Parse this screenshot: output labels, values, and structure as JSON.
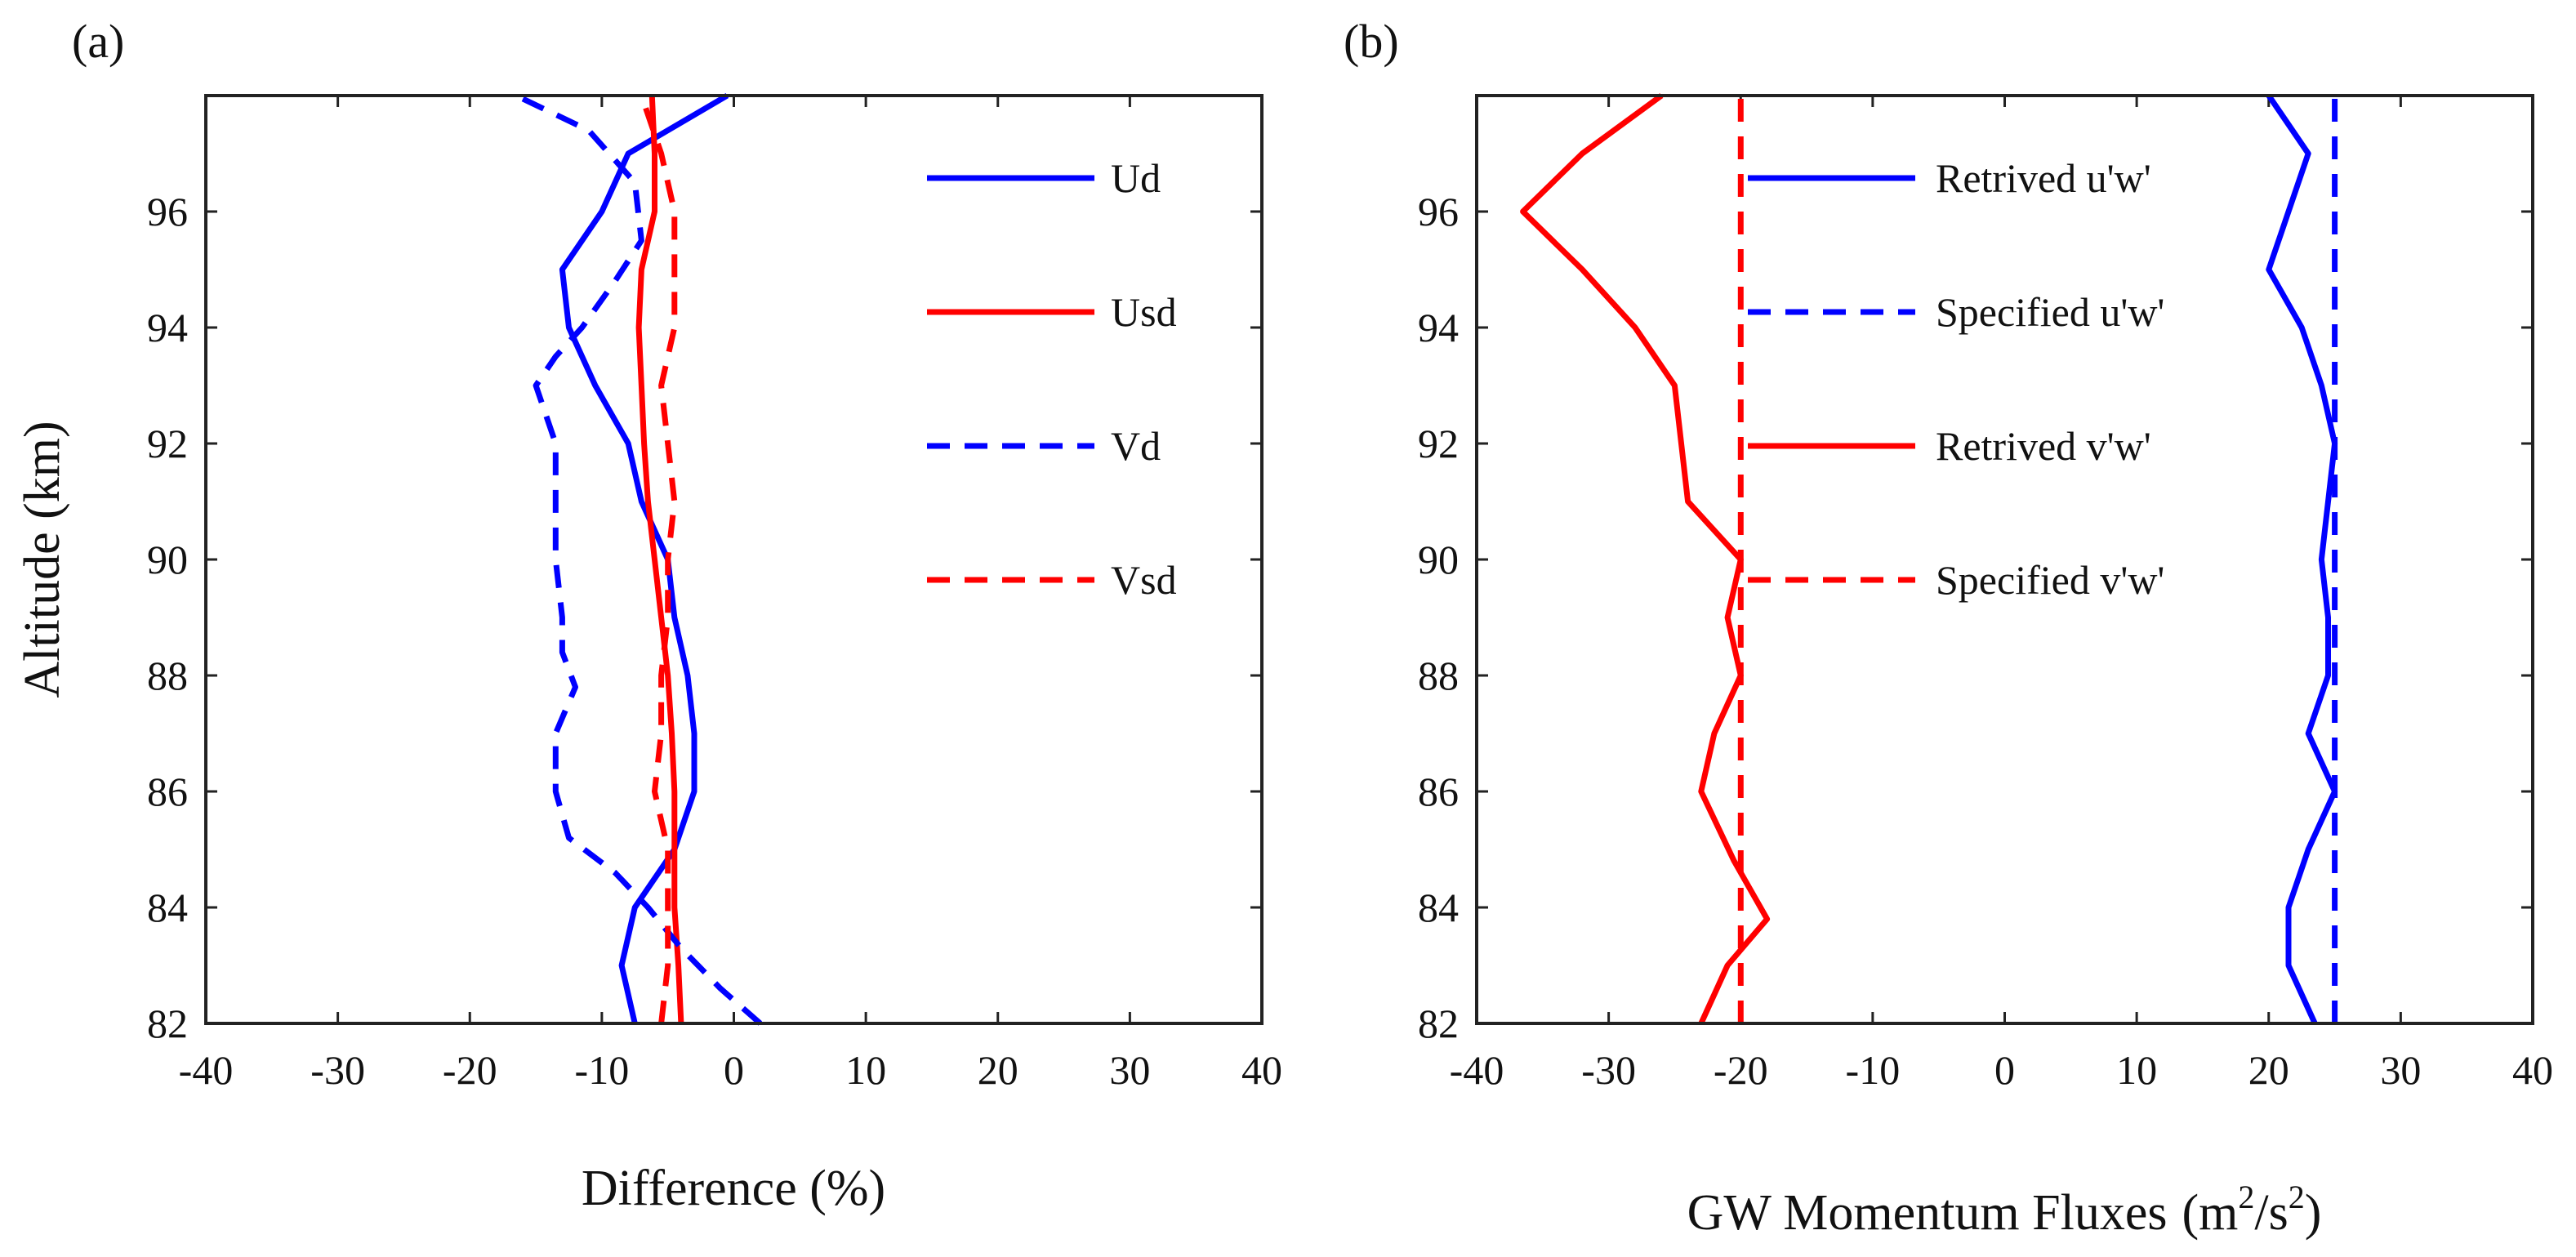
{
  "chart_data": [
    {
      "type": "line",
      "panel_label": "(a)",
      "title": "",
      "xlabel": "Difference (%)",
      "ylabel": "Altitude (km)",
      "xlim": [
        -40,
        40
      ],
      "ylim": [
        82,
        98
      ],
      "xticks": [
        -40,
        -30,
        -20,
        -10,
        0,
        10,
        20,
        30,
        40
      ],
      "yticks": [
        82,
        84,
        86,
        88,
        90,
        92,
        94,
        96
      ],
      "legend_position": "top-right",
      "series": [
        {
          "name": "Ud",
          "color": "#0000ff",
          "dash": "solid",
          "points": [
            [
              -7.5,
              82
            ],
            [
              -8.5,
              83
            ],
            [
              -7.5,
              84
            ],
            [
              -4.5,
              85
            ],
            [
              -3,
              86
            ],
            [
              -3,
              87
            ],
            [
              -3.5,
              88
            ],
            [
              -4.5,
              89
            ],
            [
              -5,
              90
            ],
            [
              -7,
              91
            ],
            [
              -8,
              92
            ],
            [
              -10.5,
              93
            ],
            [
              -12.5,
              94
            ],
            [
              -13,
              95
            ],
            [
              -10,
              96
            ],
            [
              -8,
              97
            ],
            [
              -0.5,
              98
            ]
          ]
        },
        {
          "name": "Usd",
          "color": "#ff0000",
          "dash": "solid",
          "points": [
            [
              -4,
              82
            ],
            [
              -4.2,
              83
            ],
            [
              -4.5,
              84
            ],
            [
              -4.5,
              85
            ],
            [
              -4.5,
              86
            ],
            [
              -4.7,
              87
            ],
            [
              -5,
              88
            ],
            [
              -5.5,
              89
            ],
            [
              -6,
              90
            ],
            [
              -6.5,
              91
            ],
            [
              -6.8,
              92
            ],
            [
              -7,
              93
            ],
            [
              -7.2,
              94
            ],
            [
              -7,
              95
            ],
            [
              -6,
              96
            ],
            [
              -6,
              97
            ],
            [
              -6.2,
              98
            ]
          ]
        },
        {
          "name": "Vd",
          "color": "#0000ff",
          "dash": "dashed",
          "points": [
            [
              2,
              82
            ],
            [
              -1,
              82.6
            ],
            [
              -4,
              83.3
            ],
            [
              -6.5,
              84
            ],
            [
              -9,
              84.6
            ],
            [
              -12.5,
              85.2
            ],
            [
              -13.5,
              86
            ],
            [
              -13.5,
              87
            ],
            [
              -12,
              87.8
            ],
            [
              -13,
              88.4
            ],
            [
              -13,
              89
            ],
            [
              -13.5,
              90
            ],
            [
              -13.5,
              91
            ],
            [
              -13.5,
              92
            ],
            [
              -15,
              93
            ],
            [
              -13.5,
              93.5
            ],
            [
              -11.5,
              94
            ],
            [
              -9,
              94.8
            ],
            [
              -7,
              95.5
            ],
            [
              -7.5,
              96.5
            ],
            [
              -11,
              97.4
            ],
            [
              -16.5,
              98
            ]
          ]
        },
        {
          "name": "Vsd",
          "color": "#ff0000",
          "dash": "dashed",
          "points": [
            [
              -5.5,
              82
            ],
            [
              -5,
              83
            ],
            [
              -5,
              84
            ],
            [
              -5,
              85
            ],
            [
              -6,
              86
            ],
            [
              -5.5,
              87
            ],
            [
              -5.5,
              88
            ],
            [
              -5,
              89
            ],
            [
              -5,
              90
            ],
            [
              -4.5,
              91
            ],
            [
              -5,
              92
            ],
            [
              -5.5,
              93
            ],
            [
              -4.5,
              94
            ],
            [
              -4.5,
              95
            ],
            [
              -4.5,
              96
            ],
            [
              -5.5,
              97
            ],
            [
              -7,
              98
            ]
          ]
        }
      ]
    },
    {
      "type": "line",
      "panel_label": "(b)",
      "title": "",
      "xlabel": "GW Momentum Fluxes",
      "xlabel_unit_open": "(m",
      "xlabel_unit_sup1": "2",
      "xlabel_unit_mid": "/s",
      "xlabel_unit_sup2": "2",
      "xlabel_unit_close": ")",
      "ylabel": "",
      "xlim": [
        -40,
        40
      ],
      "ylim": [
        82,
        98
      ],
      "xticks": [
        -40,
        -30,
        -20,
        -10,
        0,
        10,
        20,
        30,
        40
      ],
      "yticks": [
        82,
        84,
        86,
        88,
        90,
        92,
        94,
        96
      ],
      "legend_position": "top-left",
      "series": [
        {
          "name": "Retrived u'w'",
          "color": "#0000ff",
          "dash": "solid",
          "points": [
            [
              23.5,
              82
            ],
            [
              21.5,
              83
            ],
            [
              21.5,
              84
            ],
            [
              23,
              85
            ],
            [
              25,
              86
            ],
            [
              23,
              87
            ],
            [
              24.5,
              88
            ],
            [
              24.5,
              89
            ],
            [
              24,
              90
            ],
            [
              24.5,
              91
            ],
            [
              25,
              92
            ],
            [
              24,
              93
            ],
            [
              22.5,
              94
            ],
            [
              20,
              95
            ],
            [
              21.5,
              96
            ],
            [
              23,
              97
            ],
            [
              20,
              98
            ]
          ]
        },
        {
          "name": "Specified u'w'",
          "color": "#0000ff",
          "dash": "dashed",
          "points": [
            [
              25,
              82
            ],
            [
              25,
              98
            ]
          ]
        },
        {
          "name": "Retrived v'w'",
          "color": "#ff0000",
          "dash": "solid",
          "points": [
            [
              -23,
              82
            ],
            [
              -21,
              83
            ],
            [
              -18,
              83.8
            ],
            [
              -20.5,
              84.8
            ],
            [
              -23,
              86
            ],
            [
              -22,
              87
            ],
            [
              -20,
              88
            ],
            [
              -21,
              89
            ],
            [
              -20,
              90
            ],
            [
              -24,
              91
            ],
            [
              -25,
              93
            ],
            [
              -28,
              94
            ],
            [
              -32,
              95
            ],
            [
              -36.5,
              96
            ],
            [
              -32,
              97
            ],
            [
              -26,
              98
            ]
          ]
        },
        {
          "name": "Specified v'w'",
          "color": "#ff0000",
          "dash": "dashed",
          "points": [
            [
              -20,
              82
            ],
            [
              -20,
              98
            ]
          ]
        }
      ]
    }
  ]
}
